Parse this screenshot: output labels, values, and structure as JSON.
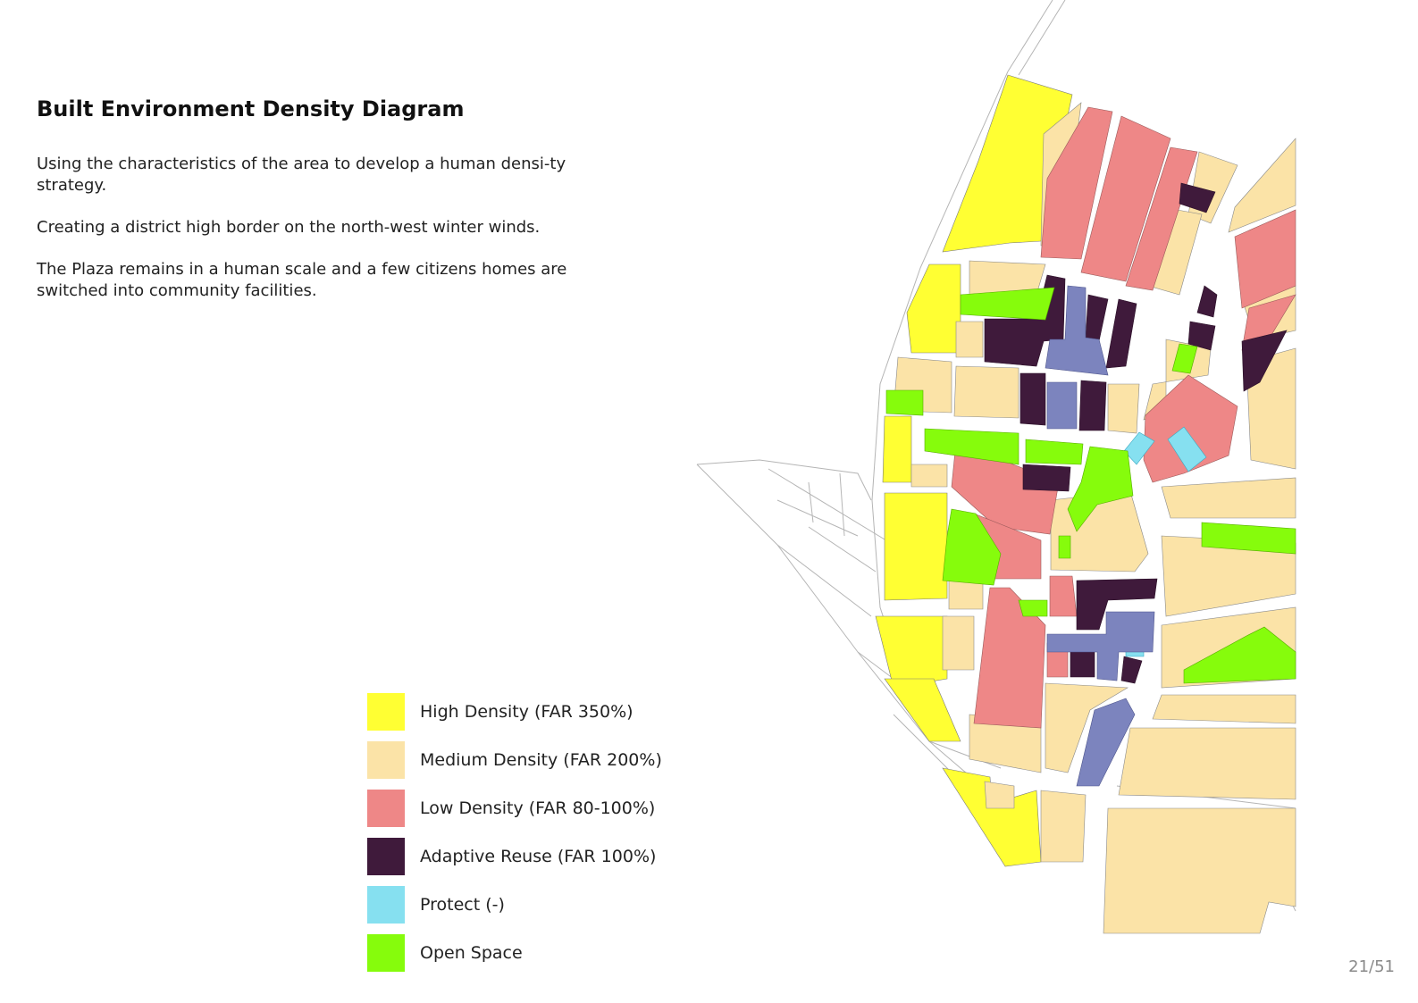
{
  "header": {
    "title": "Built Environment Density Diagram"
  },
  "description": {
    "paragraphs": [
      "Using the characteristics of the area to develop a human densi-ty strategy.",
      "Creating a district high border on the north-west winter winds.",
      "The Plaza remains in a human scale and a few citizens homes are switched into community facilities."
    ]
  },
  "legend": {
    "items": [
      {
        "label": "High Density (FAR 350%)",
        "color": "#ffff33"
      },
      {
        "label": "Medium Density (FAR 200%)",
        "color": "#fbe3a7"
      },
      {
        "label": "Low Density (FAR 80-100%)",
        "color": "#ee8787"
      },
      {
        "label": "Adaptive Reuse (FAR 100%)",
        "color": "#3f1a3b"
      },
      {
        "label": "Protect (-)",
        "color": "#86e0f0"
      },
      {
        "label": "Open Space",
        "color": "#86fc0c"
      }
    ]
  },
  "map": {
    "extra_category_color": "#7c84be"
  },
  "footer": {
    "page": "21/51"
  }
}
